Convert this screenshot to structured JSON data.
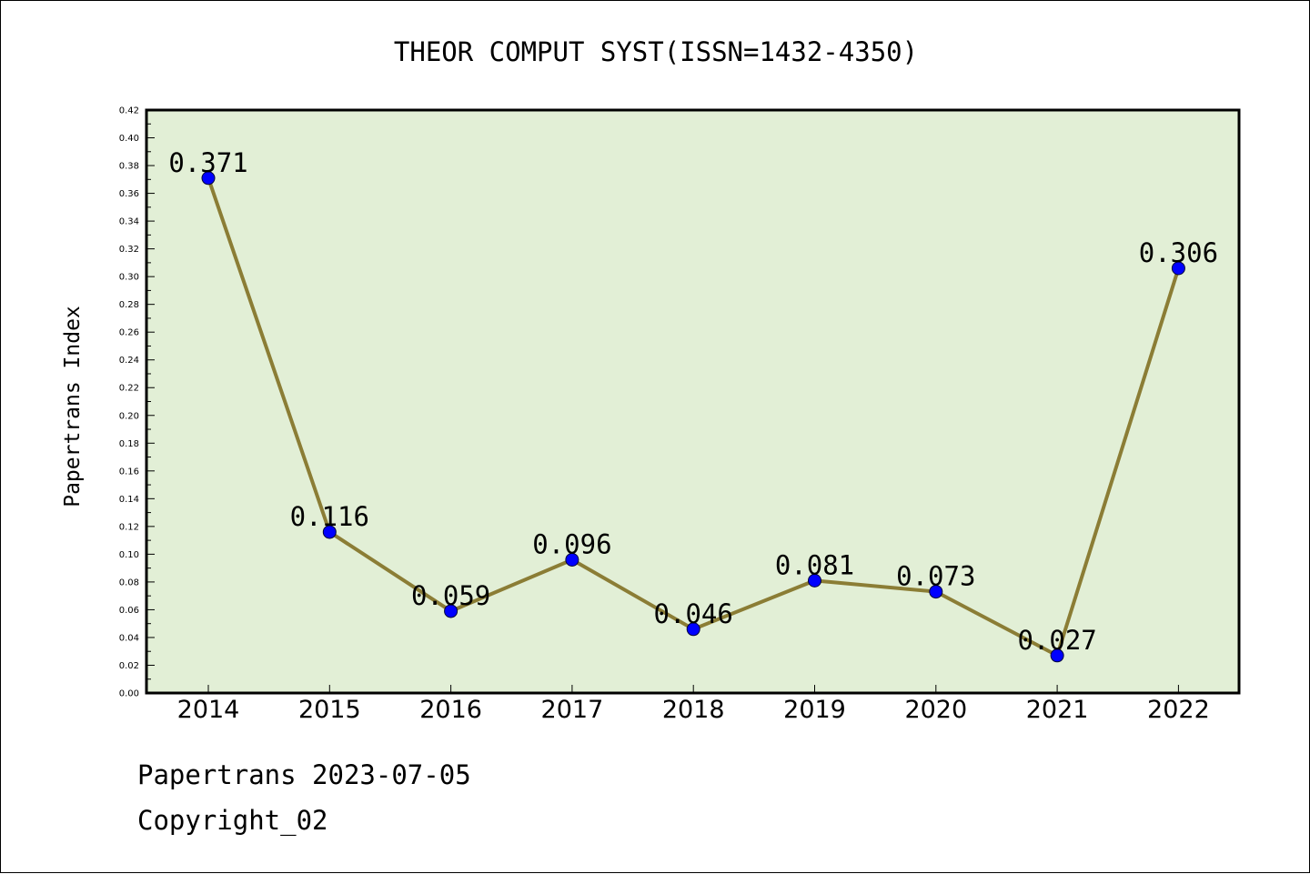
{
  "chart_data": {
    "type": "line",
    "title": "THEOR COMPUT SYST(ISSN=1432-4350)",
    "ylabel": "Papertrans Index",
    "xlabel": "",
    "categories": [
      "2014",
      "2015",
      "2016",
      "2017",
      "2018",
      "2019",
      "2020",
      "2021",
      "2022"
    ],
    "series": [
      {
        "values": [
          0.371,
          0.116,
          0.059,
          0.096,
          0.046,
          0.081,
          0.073,
          0.027,
          0.306
        ],
        "labels": [
          "0.371",
          "0.116",
          "0.059",
          "0.096",
          "0.046",
          "0.081",
          "0.073",
          "0.027",
          "0.306"
        ]
      }
    ],
    "ylim": [
      0,
      0.42
    ],
    "y_ticks": [
      "0.00",
      "0.02",
      "0.04",
      "0.06",
      "0.08",
      "0.10",
      "0.12",
      "0.14",
      "0.16",
      "0.18",
      "0.20",
      "0.22",
      "0.24",
      "0.26",
      "0.28",
      "0.30",
      "0.32",
      "0.34",
      "0.36",
      "0.38",
      "0.40",
      "0.42"
    ],
    "grid": false,
    "colors": {
      "plot_background": "#e2efd6",
      "line": "#8b7d35",
      "marker": "#0000ff"
    }
  },
  "footer": {
    "date_line": "Papertrans 2023-07-05",
    "copyright": "Copyright_02"
  }
}
